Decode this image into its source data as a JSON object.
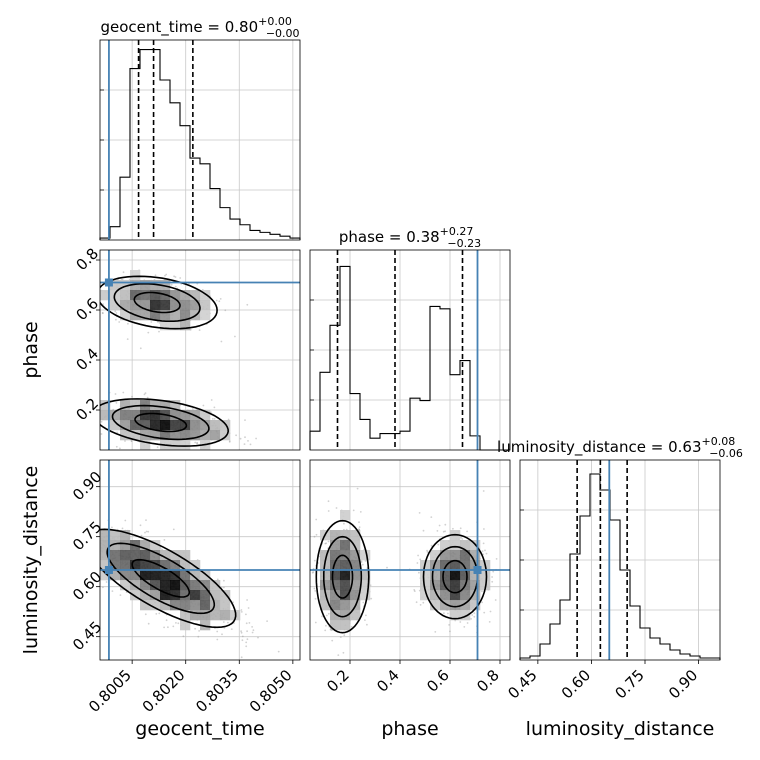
{
  "chart_data": {
    "type": "corner",
    "parameters": [
      "geocent_time",
      "phase",
      "luminosity_distance"
    ],
    "injection": {
      "geocent_time": 0.79985,
      "phase": 0.71,
      "luminosity_distance": 0.65
    },
    "panels": {
      "hist_geocent_time": {
        "title_main": "geocent_time = 0.80",
        "title_sup": "+0.00",
        "title_sub": "−0.00",
        "xlim": [
          0.7996,
          0.8052
        ],
        "quantiles": [
          0.80068,
          0.8011,
          0.8022
        ],
        "bin_edges": [
          0.7996,
          0.79988,
          0.80016,
          0.80044,
          0.80072,
          0.801,
          0.80128,
          0.80156,
          0.80184,
          0.80212,
          0.8024,
          0.80268,
          0.80296,
          0.80324,
          0.80352,
          0.8038,
          0.80408,
          0.80436,
          0.80464,
          0.80492,
          0.8052
        ],
        "counts": [
          1,
          7,
          33,
          90,
          100,
          100,
          84,
          72,
          60,
          43,
          40,
          27,
          17,
          11,
          8,
          5,
          4,
          3,
          2,
          1
        ],
        "count_max": 105
      },
      "hist_phase": {
        "title_main": "phase = 0.38",
        "title_sup": "+0.27",
        "title_sub": "−0.23",
        "xlim": [
          0.04,
          0.84
        ],
        "quantiles": [
          0.15,
          0.38,
          0.65
        ],
        "bin_edges": [
          0.04,
          0.08,
          0.12,
          0.16,
          0.2,
          0.24,
          0.28,
          0.32,
          0.36,
          0.4,
          0.44,
          0.48,
          0.52,
          0.56,
          0.6,
          0.64,
          0.68,
          0.72,
          0.76,
          0.8,
          0.84
        ],
        "counts": [
          8,
          33,
          53,
          78,
          24,
          13,
          5,
          7,
          7,
          8,
          22,
          21,
          61,
          60,
          32,
          38,
          6,
          0,
          0,
          0
        ],
        "count_max": 85
      },
      "hist_luminosity_distance": {
        "title_main": "luminosity_distance = 0.63",
        "title_sup": "+0.08",
        "title_sub": "−0.06",
        "xlim": [
          0.4,
          0.96
        ],
        "quantiles": [
          0.56,
          0.625,
          0.7
        ],
        "bin_edges": [
          0.4,
          0.428,
          0.456,
          0.484,
          0.512,
          0.54,
          0.568,
          0.596,
          0.624,
          0.652,
          0.68,
          0.708,
          0.736,
          0.764,
          0.792,
          0.82,
          0.848,
          0.876,
          0.904,
          0.932,
          0.96
        ],
        "counts": [
          1,
          2,
          8,
          18,
          30,
          53,
          72,
          93,
          85,
          70,
          45,
          27,
          16,
          11,
          8,
          5,
          3,
          2,
          1,
          1
        ],
        "count_max": 100
      },
      "scatter_phase_vs_geocent_time": {
        "xlim": [
          0.7996,
          0.8052
        ],
        "ylim": [
          0.04,
          0.84
        ],
        "x_ticks": [
          0.8005,
          0.802,
          0.8035,
          0.805
        ],
        "y_ticks": [
          0.2,
          0.4,
          0.6,
          0.8
        ],
        "clusters": [
          {
            "cx": 0.8012,
            "cy": 0.63,
            "sx": 0.0008,
            "sy": 0.05,
            "rho": -0.3,
            "n": 900
          },
          {
            "cx": 0.8013,
            "cy": 0.15,
            "sx": 0.0009,
            "sy": 0.045,
            "rho": -0.35,
            "n": 1200
          }
        ]
      },
      "scatter_luminosity_distance_vs_geocent_time": {
        "xlim": [
          0.7996,
          0.8052
        ],
        "ylim": [
          0.38,
          0.98
        ],
        "x_ticks": [
          0.8005,
          0.802,
          0.8035,
          0.805
        ],
        "y_ticks": [
          0.45,
          0.6,
          0.75,
          0.9
        ],
        "clusters": [
          {
            "cx": 0.8013,
            "cy": 0.625,
            "sx": 0.001,
            "sy": 0.07,
            "rho": -0.75,
            "n": 2200
          }
        ]
      },
      "scatter_luminosity_distance_vs_phase": {
        "xlim": [
          0.04,
          0.84
        ],
        "ylim": [
          0.38,
          0.98
        ],
        "x_ticks": [
          0.2,
          0.4,
          0.6,
          0.8
        ],
        "y_ticks": [
          0.45,
          0.6,
          0.75,
          0.9
        ],
        "clusters": [
          {
            "cx": 0.17,
            "cy": 0.63,
            "sx": 0.05,
            "sy": 0.08,
            "rho": 0.0,
            "n": 1100
          },
          {
            "cx": 0.62,
            "cy": 0.63,
            "sx": 0.06,
            "sy": 0.06,
            "rho": 0.0,
            "n": 1100
          }
        ]
      }
    },
    "axis_labels": {
      "x": [
        "geocent_time",
        "phase",
        "luminosity_distance"
      ],
      "y": [
        "phase",
        "luminosity_distance"
      ]
    },
    "tick_labels": {
      "geocent_time": [
        "0.8005",
        "0.8020",
        "0.8035",
        "0.8050"
      ],
      "phase": [
        "0.2",
        "0.4",
        "0.6",
        "0.8"
      ],
      "luminosity_distance": [
        "0.45",
        "0.60",
        "0.75",
        "0.90"
      ]
    },
    "colors": {
      "truth": "#4682b4",
      "hist": "#000000",
      "grid": "#c8c8c8",
      "points": "#9a9a9a"
    },
    "grid": true
  }
}
